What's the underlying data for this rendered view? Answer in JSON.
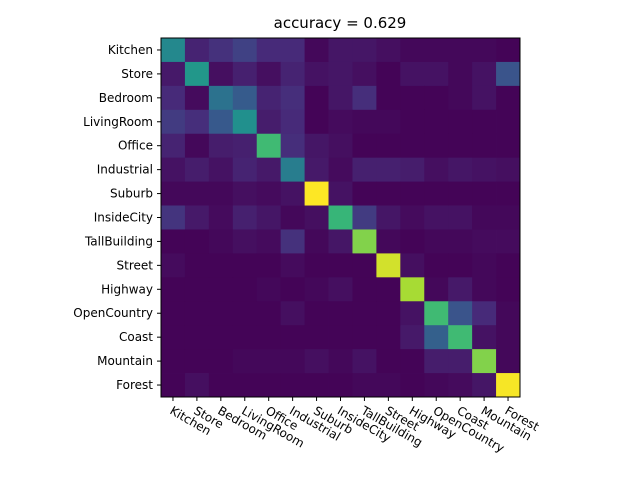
{
  "chart_data": {
    "type": "heatmap",
    "title": "accuracy = 0.629",
    "xlabel": "",
    "ylabel": "",
    "colormap": "viridis",
    "value_range": [
      0,
      0.96
    ],
    "grid": false,
    "row_labels": [
      "Kitchen",
      "Store",
      "Bedroom",
      "LivingRoom",
      "Office",
      "Industrial",
      "Suburb",
      "InsideCity",
      "TallBuilding",
      "Street",
      "Highway",
      "OpenCountry",
      "Coast",
      "Mountain",
      "Forest"
    ],
    "col_labels": [
      "Kitchen",
      "Store",
      "Bedroom",
      "LivingRoom",
      "Office",
      "Industrial",
      "Suburb",
      "InsideCity",
      "TallBuilding",
      "Street",
      "Highway",
      "OpenCountry",
      "Coast",
      "Mountain",
      "Forest"
    ],
    "values": [
      [
        0.45,
        0.1,
        0.14,
        0.19,
        0.12,
        0.12,
        0.02,
        0.06,
        0.06,
        0.04,
        0.02,
        0.02,
        0.02,
        0.02,
        0.01
      ],
      [
        0.07,
        0.51,
        0.04,
        0.09,
        0.04,
        0.1,
        0.05,
        0.06,
        0.04,
        0.01,
        0.05,
        0.05,
        0.02,
        0.05,
        0.25
      ],
      [
        0.12,
        0.03,
        0.37,
        0.28,
        0.1,
        0.13,
        0.01,
        0.06,
        0.13,
        0.01,
        0.01,
        0.01,
        0.02,
        0.05,
        0.01
      ],
      [
        0.17,
        0.13,
        0.27,
        0.48,
        0.08,
        0.12,
        0.01,
        0.03,
        0.02,
        0.02,
        0.01,
        0.01,
        0.01,
        0.01,
        0.01
      ],
      [
        0.1,
        0.02,
        0.08,
        0.09,
        0.66,
        0.13,
        0.06,
        0.04,
        0.01,
        0.01,
        0.01,
        0.01,
        0.01,
        0.01,
        0.01
      ],
      [
        0.05,
        0.08,
        0.05,
        0.1,
        0.07,
        0.41,
        0.07,
        0.03,
        0.09,
        0.09,
        0.08,
        0.04,
        0.06,
        0.05,
        0.04
      ],
      [
        0.02,
        0.02,
        0.02,
        0.04,
        0.03,
        0.05,
        0.96,
        0.05,
        0.01,
        0.01,
        0.01,
        0.01,
        0.01,
        0.01,
        0.01
      ],
      [
        0.15,
        0.07,
        0.03,
        0.09,
        0.06,
        0.02,
        0.04,
        0.64,
        0.17,
        0.06,
        0.03,
        0.05,
        0.05,
        0.02,
        0.02
      ],
      [
        0.01,
        0.01,
        0.02,
        0.04,
        0.03,
        0.14,
        0.02,
        0.06,
        0.78,
        0.02,
        0.01,
        0.02,
        0.02,
        0.03,
        0.03
      ],
      [
        0.03,
        0.01,
        0.01,
        0.01,
        0.01,
        0.03,
        0.01,
        0.01,
        0.01,
        0.9,
        0.04,
        0.01,
        0.01,
        0.02,
        0.01
      ],
      [
        0.01,
        0.01,
        0.01,
        0.01,
        0.02,
        0.01,
        0.02,
        0.04,
        0.01,
        0.01,
        0.84,
        0.02,
        0.07,
        0.02,
        0.01
      ],
      [
        0.01,
        0.01,
        0.01,
        0.01,
        0.01,
        0.04,
        0.01,
        0.01,
        0.01,
        0.01,
        0.05,
        0.66,
        0.25,
        0.12,
        0.02
      ],
      [
        0.01,
        0.01,
        0.01,
        0.01,
        0.01,
        0.01,
        0.01,
        0.01,
        0.01,
        0.01,
        0.07,
        0.3,
        0.66,
        0.05,
        0.02
      ],
      [
        0.01,
        0.01,
        0.01,
        0.02,
        0.02,
        0.02,
        0.04,
        0.02,
        0.05,
        0.01,
        0.01,
        0.08,
        0.08,
        0.78,
        0.02
      ],
      [
        0.01,
        0.04,
        0.01,
        0.01,
        0.01,
        0.01,
        0.01,
        0.01,
        0.02,
        0.02,
        0.01,
        0.02,
        0.03,
        0.06,
        0.95
      ]
    ]
  }
}
